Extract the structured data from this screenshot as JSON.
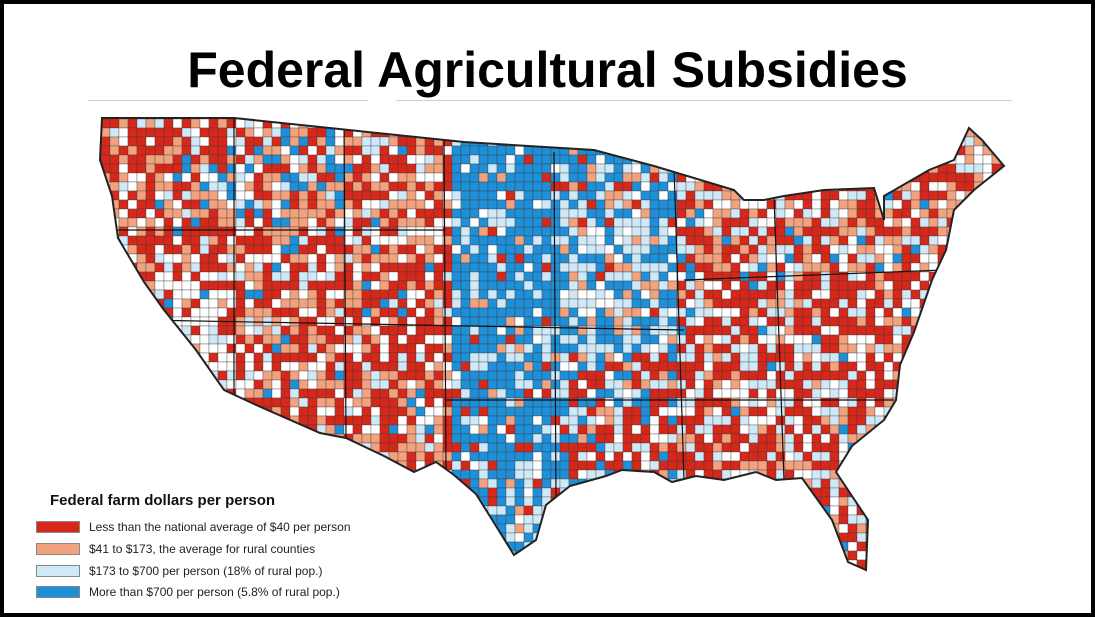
{
  "title": "Federal Agricultural Subsidies",
  "legend": {
    "title": "Federal farm dollars per person",
    "items": [
      {
        "label": "Less than the national average of $40 per person",
        "color": "#d5281b"
      },
      {
        "label": "$41 to $173, the average for rural counties",
        "color": "#f3a27f"
      },
      {
        "label": "$173 to $700 per person (18% of rural pop.)",
        "color": "#cfe9f8"
      },
      {
        "label": "More than $700 per person (5.8% of rural pop.)",
        "color": "#1f8fd8"
      }
    ]
  },
  "colors": {
    "background": "#ffffff",
    "frame": "#000000",
    "border": "#222222"
  }
}
